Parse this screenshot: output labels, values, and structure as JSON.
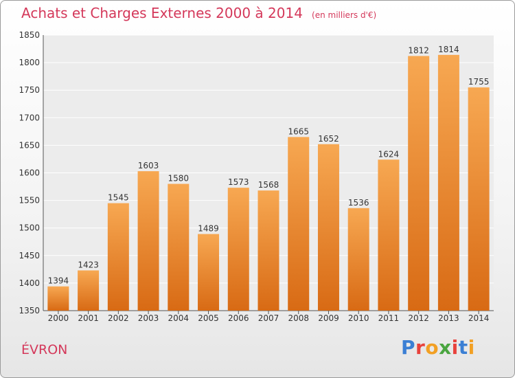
{
  "title": "Achats et Charges Externes 2000 à 2014",
  "unit": "(en milliers d'€)",
  "commune": "ÉVRON",
  "logo": {
    "letters": [
      "P",
      "r",
      "o",
      "x",
      "i",
      "t",
      "i"
    ],
    "colors": [
      "#3b7fd4",
      "#e8423c",
      "#f2a024",
      "#4aa540",
      "#e8423c",
      "#3b7fd4",
      "#f2a024"
    ]
  },
  "colors": {
    "bar": "#f0922e",
    "accent": "#d4385a"
  },
  "chart_data": {
    "type": "bar",
    "categories": [
      "2000",
      "2001",
      "2002",
      "2003",
      "2004",
      "2005",
      "2006",
      "2007",
      "2008",
      "2009",
      "2010",
      "2011",
      "2012",
      "2013",
      "2014"
    ],
    "values": [
      1394,
      1423,
      1545,
      1603,
      1580,
      1489,
      1573,
      1568,
      1665,
      1652,
      1536,
      1624,
      1812,
      1814,
      1755
    ],
    "ylim": [
      1350,
      1850
    ],
    "yticks": [
      1350,
      1400,
      1450,
      1500,
      1550,
      1600,
      1650,
      1700,
      1750,
      1800,
      1850
    ],
    "grid": true,
    "data_labels": true
  }
}
